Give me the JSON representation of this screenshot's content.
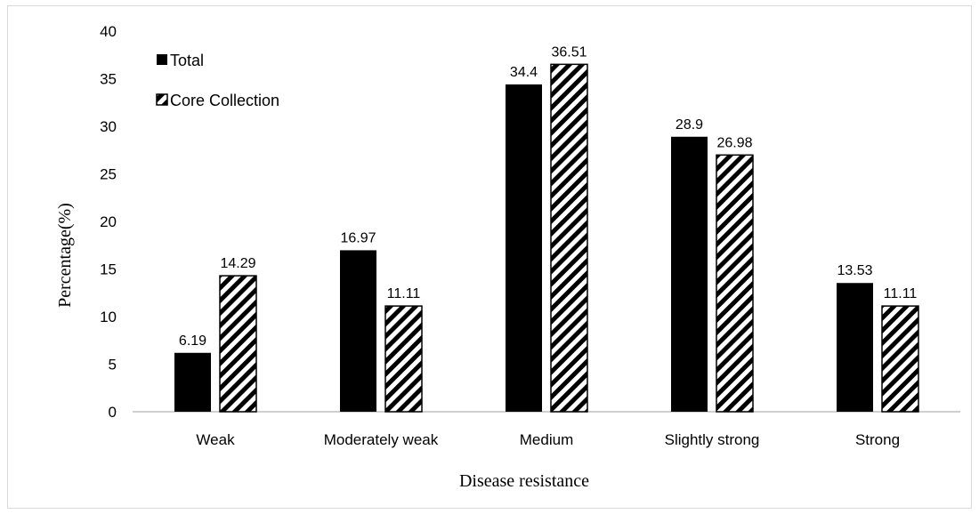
{
  "chart_data": {
    "type": "bar",
    "categories": [
      "Weak",
      "Moderately weak",
      "Medium",
      "Slightly strong",
      "Strong"
    ],
    "series": [
      {
        "name": "Total",
        "values": [
          6.19,
          16.97,
          34.4,
          28.9,
          13.53
        ],
        "labels": [
          "6.19",
          "16.97",
          "34.4",
          "28.9",
          "13.53"
        ],
        "color": "#000000",
        "pattern": "solid"
      },
      {
        "name": "Core Collection",
        "values": [
          14.29,
          11.11,
          36.51,
          26.98,
          11.11
        ],
        "labels": [
          "14.29",
          "11.11",
          "36.51",
          "26.98",
          "11.11"
        ],
        "color": "#000000",
        "pattern": "diagonal-stripes"
      }
    ],
    "title": "",
    "xlabel": "Disease resistance",
    "ylabel": "Percentage(%)",
    "ylim": [
      0,
      40
    ],
    "yticks": [
      "0",
      "5",
      "10",
      "15",
      "20",
      "25",
      "30",
      "35",
      "40"
    ],
    "grid": false,
    "legend_position": "top-left"
  }
}
